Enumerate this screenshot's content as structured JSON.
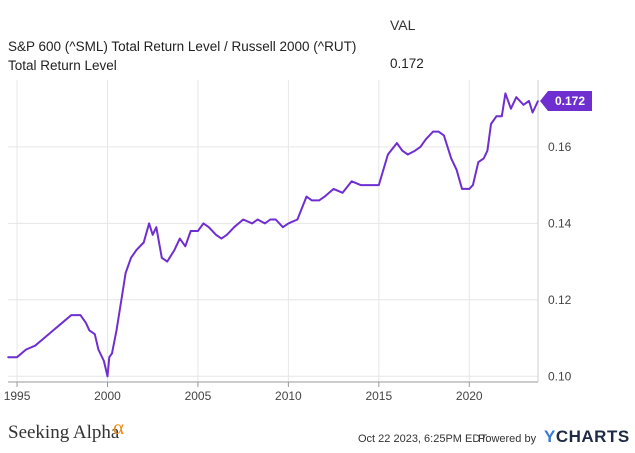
{
  "legend": {
    "header": "VAL",
    "series_name": "S&P 600 (^SML) Total Return Level / Russell 2000 (^RUT) Total Return Level",
    "series_value": "0.172"
  },
  "footer": {
    "brand": "Seeking Alpha",
    "brand_symbol": "α",
    "timestamp": "Oct 22 2023, 6:25PM EDT.",
    "powered_by": "Powered by",
    "provider_accent": "Y",
    "provider_rest": "CHARTS"
  },
  "colors": {
    "line": "#6f2fd0",
    "grid": "#e6e6e6",
    "brand_alpha": "#f08a12"
  },
  "chart_data": {
    "type": "line",
    "title": "",
    "xlabel": "",
    "ylabel": "",
    "x_ticks": [
      "1995",
      "2000",
      "2005",
      "2010",
      "2015",
      "2020"
    ],
    "y_ticks": [
      "0.10",
      "0.12",
      "0.14",
      "0.16"
    ],
    "xlim": [
      1994.5,
      2023.8
    ],
    "ylim": [
      0.0985,
      0.1775
    ],
    "grid": true,
    "last_value_label": "0.172",
    "series": [
      {
        "x": [
          1994.5,
          1995.0,
          1995.5,
          1996.0,
          1996.5,
          1997.0,
          1997.5,
          1998.0,
          1998.5,
          1998.8,
          1999.0,
          1999.3,
          1999.5,
          1999.8,
          2000.0,
          2000.1,
          2000.25,
          2000.5,
          2000.8,
          2001.0,
          2001.3,
          2001.6,
          2002.0,
          2002.3,
          2002.5,
          2002.7,
          2003.0,
          2003.3,
          2003.7,
          2004.0,
          2004.3,
          2004.6,
          2005.0,
          2005.3,
          2005.6,
          2006.0,
          2006.3,
          2006.6,
          2007.0,
          2007.5,
          2008.0,
          2008.3,
          2008.7,
          2009.0,
          2009.3,
          2009.7,
          2010.0,
          2010.5,
          2011.0,
          2011.3,
          2011.7,
          2012.0,
          2012.5,
          2013.0,
          2013.5,
          2014.0,
          2014.5,
          2015.0,
          2015.5,
          2016.0,
          2016.3,
          2016.6,
          2017.0,
          2017.3,
          2017.6,
          2018.0,
          2018.3,
          2018.6,
          2019.0,
          2019.3,
          2019.6,
          2020.0,
          2020.2,
          2020.5,
          2020.8,
          2021.0,
          2021.2,
          2021.5,
          2021.8,
          2022.0,
          2022.3,
          2022.6,
          2023.0,
          2023.3,
          2023.5,
          2023.8
        ],
        "values": [
          0.105,
          0.105,
          0.107,
          0.108,
          0.11,
          0.112,
          0.114,
          0.116,
          0.116,
          0.114,
          0.112,
          0.111,
          0.107,
          0.104,
          0.1,
          0.105,
          0.106,
          0.112,
          0.121,
          0.127,
          0.131,
          0.133,
          0.135,
          0.14,
          0.137,
          0.139,
          0.131,
          0.13,
          0.133,
          0.136,
          0.134,
          0.138,
          0.138,
          0.14,
          0.139,
          0.137,
          0.136,
          0.137,
          0.139,
          0.141,
          0.14,
          0.141,
          0.14,
          0.141,
          0.141,
          0.139,
          0.14,
          0.141,
          0.147,
          0.146,
          0.146,
          0.147,
          0.149,
          0.148,
          0.151,
          0.15,
          0.15,
          0.15,
          0.158,
          0.161,
          0.159,
          0.158,
          0.159,
          0.16,
          0.162,
          0.164,
          0.164,
          0.163,
          0.157,
          0.154,
          0.149,
          0.149,
          0.15,
          0.156,
          0.157,
          0.159,
          0.166,
          0.168,
          0.168,
          0.174,
          0.17,
          0.173,
          0.171,
          0.172,
          0.169,
          0.172
        ]
      }
    ]
  }
}
